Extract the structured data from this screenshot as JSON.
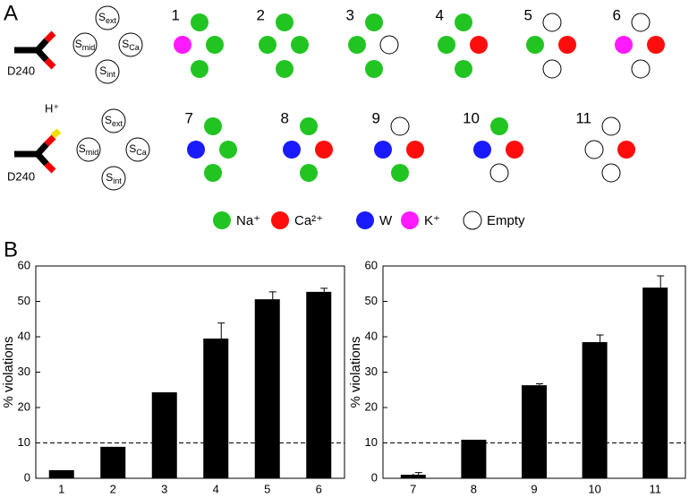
{
  "panel_a": {
    "label": "A",
    "residue_label": "D240",
    "proton_label": "H⁺",
    "sites": [
      {
        "main": "S",
        "sub": "ext"
      },
      {
        "main": "S",
        "sub": "mid"
      },
      {
        "main": "S",
        "sub": "Ca"
      },
      {
        "main": "S",
        "sub": "int"
      }
    ],
    "configurations": [
      {
        "label": "1",
        "colors": [
          "#22c422",
          "#ff1aff",
          "#22c422",
          "#22c422"
        ]
      },
      {
        "label": "2",
        "colors": [
          "#22c422",
          "#22c422",
          "#22c422",
          "#22c422"
        ]
      },
      {
        "label": "3",
        "colors": [
          "#22c422",
          "#22c422",
          "#ffffff",
          "#22c422"
        ]
      },
      {
        "label": "4",
        "colors": [
          "#22c422",
          "#22c422",
          "#ff0d0d",
          "#22c422"
        ]
      },
      {
        "label": "5",
        "colors": [
          "#ffffff",
          "#22c422",
          "#ff0d0d",
          "#ffffff"
        ]
      },
      {
        "label": "6",
        "colors": [
          "#ffffff",
          "#ff1aff",
          "#ff0d0d",
          "#ffffff"
        ]
      },
      {
        "label": "7",
        "colors": [
          "#22c422",
          "#1a1aff",
          "#22c422",
          "#22c422"
        ]
      },
      {
        "label": "8",
        "colors": [
          "#22c422",
          "#1a1aff",
          "#ff0d0d",
          "#22c422"
        ]
      },
      {
        "label": "9",
        "colors": [
          "#ffffff",
          "#1a1aff",
          "#ff0d0d",
          "#22c422"
        ]
      },
      {
        "label": "10",
        "colors": [
          "#22c422",
          "#1a1aff",
          "#ff0d0d",
          "#ffffff"
        ]
      },
      {
        "label": "11",
        "colors": [
          "#ffffff",
          "#ffffff",
          "#ff0d0d",
          "#ffffff"
        ]
      }
    ],
    "legend": [
      {
        "label": "Na⁺",
        "color": "#22c422"
      },
      {
        "label": "Ca²⁺",
        "color": "#ff0d0d"
      },
      {
        "label": "W",
        "color": "#1a1aff"
      },
      {
        "label": "K⁺",
        "color": "#ff1aff"
      },
      {
        "label": "Empty",
        "color": "#ffffff"
      }
    ]
  },
  "panel_b_label": "B",
  "chart_data": [
    {
      "type": "bar",
      "ylabel": "% violations",
      "categories": [
        "1",
        "2",
        "3",
        "4",
        "5",
        "6"
      ],
      "values": [
        2.3,
        8.9,
        24.3,
        39.5,
        50.6,
        52.7
      ],
      "errors": [
        null,
        null,
        null,
        4.4,
        2.1,
        1.0
      ],
      "color": "#000000",
      "reference_line": 10,
      "ylim": [
        0,
        60
      ],
      "yticks": [
        0,
        10,
        20,
        30,
        40,
        50,
        60
      ]
    },
    {
      "type": "bar",
      "ylabel": "% violations",
      "categories": [
        "7",
        "8",
        "9",
        "10",
        "11"
      ],
      "values": [
        1.0,
        10.9,
        26.3,
        38.5,
        53.9
      ],
      "errors": [
        0.6,
        null,
        0.4,
        2.0,
        3.3
      ],
      "color": "#000000",
      "reference_line": 10,
      "ylim": [
        0,
        60
      ],
      "yticks": [
        0,
        10,
        20,
        30,
        40,
        50,
        60
      ]
    }
  ]
}
